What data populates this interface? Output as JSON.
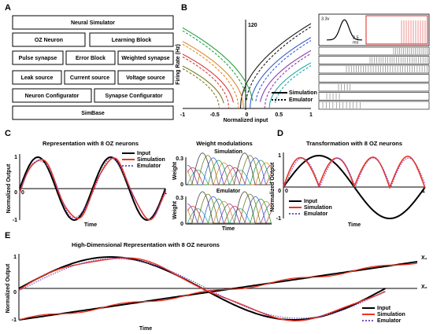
{
  "panel_a": {
    "label": "A",
    "blocks": [
      "Neural Simulator",
      "OZ Neuron",
      "Learning Block",
      "Pulse synapse",
      "Error Block",
      "Weighted synapse",
      "Leak source",
      "Current source",
      "Voltage source",
      "Neuron Configurator",
      "Synapse Configurator",
      "SimBase"
    ]
  },
  "panel_b": {
    "label": "B",
    "y_label": "Firing Rate (Hz)",
    "y_max": "120",
    "x_label": "Normalized input",
    "x_ticks": [
      "-1",
      "-0.5",
      "0",
      "0.5",
      "1"
    ],
    "legend": [
      "Simulation",
      "Emulator"
    ],
    "inset_voltage": "3.3v",
    "inset_time": "2.5",
    "inset_unit": "ms"
  },
  "panel_c": {
    "label": "C",
    "title": "Representation with 8 OZ neurons",
    "y_label": "Normalized Output",
    "y_ticks": [
      "1",
      "0",
      "-1"
    ],
    "x_ticks": [
      "0",
      "1"
    ],
    "x_label": "Time",
    "legend": [
      "Input",
      "Simulation",
      "Emulator"
    ],
    "weights": {
      "title": "Weight modulations",
      "sim_title": "Simulation",
      "emu_title": "Emulator",
      "y_label": "Weight",
      "y_ticks": [
        "0.3",
        "0"
      ],
      "x_label": "Time"
    }
  },
  "panel_d": {
    "label": "D",
    "title": "Transformation with 8 OZ neurons",
    "y_label": "Normalized Output",
    "y_ticks": [
      "1",
      "0",
      "-1"
    ],
    "x_ticks": [
      "0",
      "1"
    ],
    "x_label": "Time",
    "legend": [
      "Input",
      "Simulation",
      "Emulator"
    ]
  },
  "panel_e": {
    "label": "E",
    "title": "High-Dimensional Representation with 8 OZ neurons",
    "y_label": "Normalized Output",
    "y_ticks": [
      "1",
      "0",
      "-1"
    ],
    "x_label": "Time",
    "series_labels": [
      "X₁",
      "X₂"
    ],
    "legend": [
      "Input",
      "Simulation",
      "Emulator"
    ]
  }
}
